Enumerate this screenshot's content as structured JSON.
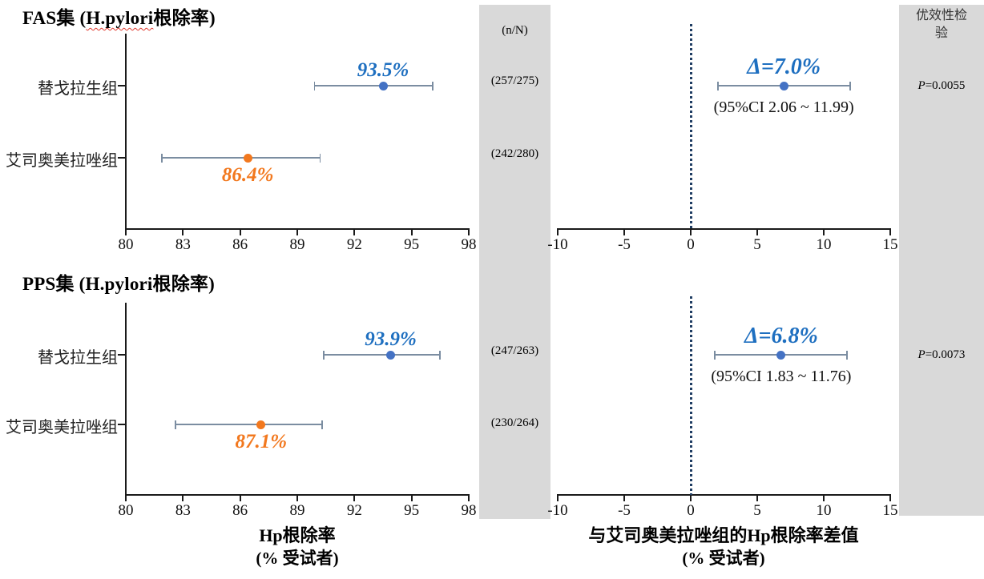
{
  "figure": {
    "columns": {
      "mid_header": "(n/N)",
      "right_header_line1": "优效性检",
      "right_header_line2": "验"
    },
    "axes": {
      "left_xlabel_line1": "Hp根除率",
      "left_xlabel_line2": "(% 受试者)",
      "right_xlabel_line1": "与艾司奥美拉唑组的Hp根除率差值",
      "right_xlabel_line2": "(% 受试者)"
    }
  },
  "colors": {
    "panel_bg": "#d9d9d9",
    "axis": "#1a1a1a",
    "ci_line": "#7b8da1",
    "blue_point": "#4472c4",
    "blue_text": "#1e6fc0",
    "orange": "#f2781e",
    "dotted_ref": "#1f3d63"
  },
  "chart_data": [
    {
      "section": "FAS",
      "title_prefix": "FAS集 (",
      "title_underlined": "H.pylori",
      "title_suffix": "根除率)",
      "left": {
        "type": "scatter",
        "title": "FAS集 (H.pylori根除率)",
        "xlabel": "Hp根除率 (% 受试者)",
        "xlim": [
          80,
          98
        ],
        "xticks": [
          80,
          83,
          86,
          89,
          92,
          95,
          98
        ],
        "rows": [
          {
            "group": "替戈拉生组",
            "rate": 93.5,
            "rate_label": "93.5%",
            "ci": [
              89.9,
              96.1
            ],
            "n_over_N": "(257/275)",
            "series": "tegoprazan",
            "color_key": "blue",
            "label_side": "above"
          },
          {
            "group": "艾司奥美拉唑组",
            "rate": 86.4,
            "rate_label": "86.4%",
            "ci": [
              81.9,
              90.2
            ],
            "n_over_N": "(242/280)",
            "series": "esomeprazole",
            "color_key": "orange",
            "label_side": "below"
          }
        ]
      },
      "right": {
        "type": "scatter",
        "xlabel": "与艾司奥美拉唑组的Hp根除率差值 (% 受试者)",
        "xlim": [
          -10,
          15
        ],
        "xticks": [
          -10,
          -5,
          0,
          5,
          10,
          15
        ],
        "reference_x": 0,
        "delta": {
          "value": 7.0,
          "label": "Δ=7.0%",
          "ci": [
            2.06,
            11.99
          ],
          "ci_label": "(95%CI  2.06 ~ 11.99)"
        },
        "p_prefix": "P",
        "p_text": "=0.0055"
      }
    },
    {
      "section": "PPS",
      "title_prefix": "PPS集 (H.pylori",
      "title_underlined": "",
      "title_suffix": "根除率)",
      "left": {
        "type": "scatter",
        "title": "PPS集 (H.pylori根除率)",
        "xlabel": "Hp根除率 (% 受试者)",
        "xlim": [
          80,
          98
        ],
        "xticks": [
          80,
          83,
          86,
          89,
          92,
          95,
          98
        ],
        "rows": [
          {
            "group": "替戈拉生组",
            "rate": 93.9,
            "rate_label": "93.9%",
            "ci": [
              90.4,
              96.5
            ],
            "n_over_N": "(247/263)",
            "series": "tegoprazan",
            "color_key": "blue",
            "label_side": "above"
          },
          {
            "group": "艾司奥美拉唑组",
            "rate": 87.1,
            "rate_label": "87.1%",
            "ci": [
              82.6,
              90.3
            ],
            "n_over_N": "(230/264)",
            "series": "esomeprazole",
            "color_key": "orange",
            "label_side": "below"
          }
        ]
      },
      "right": {
        "type": "scatter",
        "xlabel": "与艾司奥美拉唑组的Hp根除率差值 (% 受试者)",
        "xlim": [
          -10,
          15
        ],
        "xticks": [
          -10,
          -5,
          0,
          5,
          10,
          15
        ],
        "reference_x": 0,
        "delta": {
          "value": 6.8,
          "label": "Δ=6.8%",
          "ci": [
            1.83,
            11.76
          ],
          "ci_label": "(95%CI  1.83 ~ 11.76)"
        },
        "p_prefix": "P",
        "p_text": "=0.0073"
      }
    }
  ]
}
